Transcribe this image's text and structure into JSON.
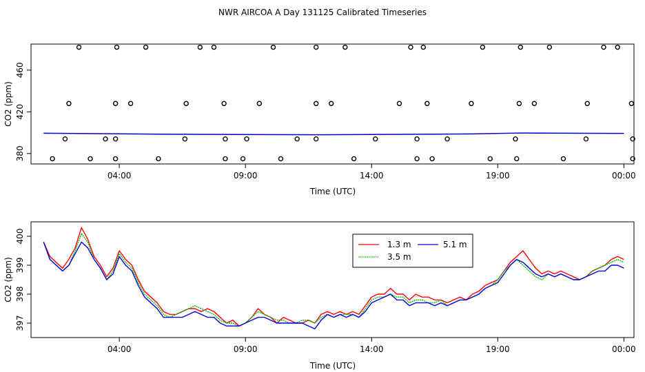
{
  "title": "NWR AIRCOA A  Day 131125  Calibrated Timeseries",
  "chart_data": [
    {
      "type": "scatter",
      "xlabel": "Time (UTC)",
      "ylabel": "CO2 (ppm)",
      "xlim": [
        0.5,
        24.4
      ],
      "ylim": [
        370,
        485
      ],
      "xticks": [
        4,
        9,
        14,
        19,
        24
      ],
      "xtick_labels": [
        "04:00",
        "09:00",
        "14:00",
        "19:00",
        "00:00"
      ],
      "yticks": [
        380,
        420,
        460
      ],
      "ytick_labels": [
        "380",
        "420",
        "460"
      ],
      "calibration_points": {
        "x": [
          1.35,
          2.85,
          3.85,
          5.55,
          8.2,
          8.9,
          10.4,
          13.3,
          15.8,
          16.4,
          18.7,
          19.75,
          21.6,
          24.35,
          1.85,
          3.45,
          3.85,
          6.6,
          8.2,
          9.05,
          11.05,
          11.8,
          14.15,
          15.8,
          17.0,
          19.7,
          22.5,
          24.35,
          2.0,
          3.85,
          4.45,
          6.65,
          8.15,
          9.55,
          11.8,
          12.4,
          15.1,
          16.2,
          17.95,
          19.85,
          20.45,
          22.55,
          24.3,
          2.4,
          3.9,
          5.05,
          7.2,
          7.75,
          10.1,
          11.8,
          12.95,
          15.55,
          16.05,
          18.4,
          19.9,
          21.05,
          23.2,
          23.75
        ],
        "y": [
          375,
          375,
          375,
          375,
          375,
          375,
          375,
          375,
          375,
          375,
          375,
          375,
          375,
          375,
          394,
          394,
          394,
          394,
          394,
          394,
          394,
          394,
          394,
          394,
          394,
          394,
          394,
          394,
          428,
          428,
          428,
          428,
          428,
          428,
          428,
          428,
          428,
          428,
          428,
          428,
          428,
          428,
          428,
          482,
          482,
          482,
          482,
          482,
          482,
          482,
          482,
          482,
          482,
          482,
          482,
          482,
          482,
          482
        ]
      },
      "series": [
        {
          "name": "ambient",
          "color": "#0000cc",
          "x": [
            1.0,
            6.0,
            12.0,
            18.0,
            19.9,
            24.0
          ],
          "y": [
            399.5,
            398.5,
            398.0,
            398.8,
            399.7,
            399.3
          ]
        }
      ]
    },
    {
      "type": "line",
      "xlabel": "Time (UTC)",
      "ylabel": "CO2 (ppm)",
      "xlim": [
        0.5,
        24.4
      ],
      "ylim": [
        396.5,
        400.5
      ],
      "xticks": [
        4,
        9,
        14,
        19,
        24
      ],
      "xtick_labels": [
        "04:00",
        "09:00",
        "14:00",
        "19:00",
        "00:00"
      ],
      "yticks": [
        397,
        398,
        399,
        400
      ],
      "ytick_labels": [
        "397",
        "398",
        "399",
        "400"
      ],
      "legend_position": "top-center",
      "x": [
        1.0,
        1.25,
        1.5,
        1.75,
        2.0,
        2.25,
        2.5,
        2.75,
        3.0,
        3.25,
        3.5,
        3.75,
        4.0,
        4.25,
        4.5,
        4.75,
        5.0,
        5.25,
        5.5,
        5.75,
        6.0,
        6.25,
        6.5,
        6.75,
        7.0,
        7.25,
        7.5,
        7.75,
        8.0,
        8.25,
        8.5,
        8.75,
        9.0,
        9.25,
        9.5,
        9.75,
        10.0,
        10.25,
        10.5,
        10.75,
        11.0,
        11.25,
        11.5,
        11.75,
        12.0,
        12.25,
        12.5,
        12.75,
        13.0,
        13.25,
        13.5,
        13.75,
        14.0,
        14.25,
        14.5,
        14.75,
        15.0,
        15.25,
        15.5,
        15.75,
        16.0,
        16.25,
        16.5,
        16.75,
        17.0,
        17.25,
        17.5,
        17.75,
        18.0,
        18.25,
        18.5,
        18.75,
        19.0,
        19.25,
        19.5,
        19.75,
        20.0,
        20.25,
        20.5,
        20.75,
        21.0,
        21.25,
        21.5,
        21.75,
        22.0,
        22.25,
        22.5,
        22.75,
        23.0,
        23.25,
        23.5,
        23.75,
        24.0
      ],
      "series": [
        {
          "name": "1.3 m",
          "color": "#ff0000",
          "y": [
            399.8,
            399.3,
            399.1,
            398.9,
            399.2,
            399.6,
            400.3,
            399.9,
            399.3,
            399.0,
            398.6,
            398.9,
            399.5,
            399.2,
            399.0,
            398.5,
            398.1,
            397.9,
            397.7,
            397.4,
            397.3,
            397.3,
            397.4,
            397.5,
            397.5,
            397.4,
            397.5,
            397.4,
            397.2,
            397.0,
            397.1,
            396.9,
            397.0,
            397.2,
            397.5,
            397.3,
            397.2,
            397.0,
            397.2,
            397.1,
            397.0,
            397.0,
            397.1,
            397.0,
            397.3,
            397.4,
            397.3,
            397.4,
            397.3,
            397.4,
            397.3,
            397.6,
            397.9,
            398.0,
            398.0,
            398.2,
            398.0,
            398.0,
            397.8,
            398.0,
            397.9,
            397.9,
            397.8,
            397.8,
            397.7,
            397.8,
            397.9,
            397.8,
            398.0,
            398.1,
            398.3,
            398.4,
            398.5,
            398.8,
            399.1,
            399.3,
            399.5,
            399.2,
            398.9,
            398.7,
            398.8,
            398.7,
            398.8,
            398.7,
            398.6,
            398.5,
            398.6,
            398.8,
            398.9,
            399.0,
            399.2,
            399.3,
            399.2
          ]
        },
        {
          "name": "3.5 m",
          "color": "#00bb00",
          "y": [
            399.8,
            399.2,
            399.0,
            398.8,
            399.0,
            399.5,
            400.1,
            399.8,
            399.2,
            398.9,
            398.5,
            398.8,
            399.4,
            399.1,
            398.9,
            398.4,
            398.0,
            397.8,
            397.6,
            397.3,
            397.2,
            397.3,
            397.4,
            397.5,
            397.6,
            397.5,
            397.4,
            397.3,
            397.1,
            397.0,
            397.0,
            396.9,
            397.0,
            397.2,
            397.4,
            397.3,
            397.2,
            397.1,
            397.1,
            397.0,
            397.0,
            397.1,
            397.1,
            397.0,
            397.2,
            397.3,
            397.2,
            397.3,
            397.3,
            397.3,
            397.2,
            397.5,
            397.8,
            397.9,
            397.9,
            398.0,
            397.9,
            397.9,
            397.7,
            397.8,
            397.8,
            397.7,
            397.7,
            397.8,
            397.6,
            397.7,
            397.8,
            397.8,
            397.9,
            398.0,
            398.2,
            398.3,
            398.5,
            398.8,
            399.0,
            399.2,
            399.0,
            398.8,
            398.6,
            398.5,
            398.7,
            398.6,
            398.7,
            398.6,
            398.5,
            398.5,
            398.6,
            398.8,
            398.9,
            399.0,
            399.1,
            399.2,
            399.1
          ]
        },
        {
          "name": "5.1 m",
          "color": "#0000dd",
          "y": [
            399.8,
            399.2,
            399.0,
            398.8,
            399.0,
            399.4,
            399.8,
            399.6,
            399.2,
            398.9,
            398.5,
            398.7,
            399.3,
            399.0,
            398.8,
            398.3,
            397.9,
            397.7,
            397.5,
            397.2,
            397.2,
            397.2,
            397.2,
            397.3,
            397.4,
            397.3,
            397.2,
            397.2,
            397.0,
            396.9,
            396.9,
            396.9,
            397.0,
            397.1,
            397.2,
            397.2,
            397.1,
            397.0,
            397.0,
            397.0,
            397.0,
            397.0,
            396.9,
            396.8,
            397.1,
            397.3,
            397.2,
            397.3,
            397.2,
            397.3,
            397.2,
            397.4,
            397.7,
            397.8,
            397.9,
            398.0,
            397.8,
            397.8,
            397.6,
            397.7,
            397.7,
            397.7,
            397.6,
            397.7,
            397.6,
            397.7,
            397.8,
            397.8,
            397.9,
            398.0,
            398.2,
            398.3,
            398.4,
            398.7,
            399.0,
            399.2,
            399.1,
            398.9,
            398.7,
            398.6,
            398.7,
            398.6,
            398.7,
            398.6,
            398.5,
            398.5,
            398.6,
            398.7,
            398.8,
            398.8,
            399.0,
            399.0,
            398.9
          ]
        }
      ]
    }
  ]
}
